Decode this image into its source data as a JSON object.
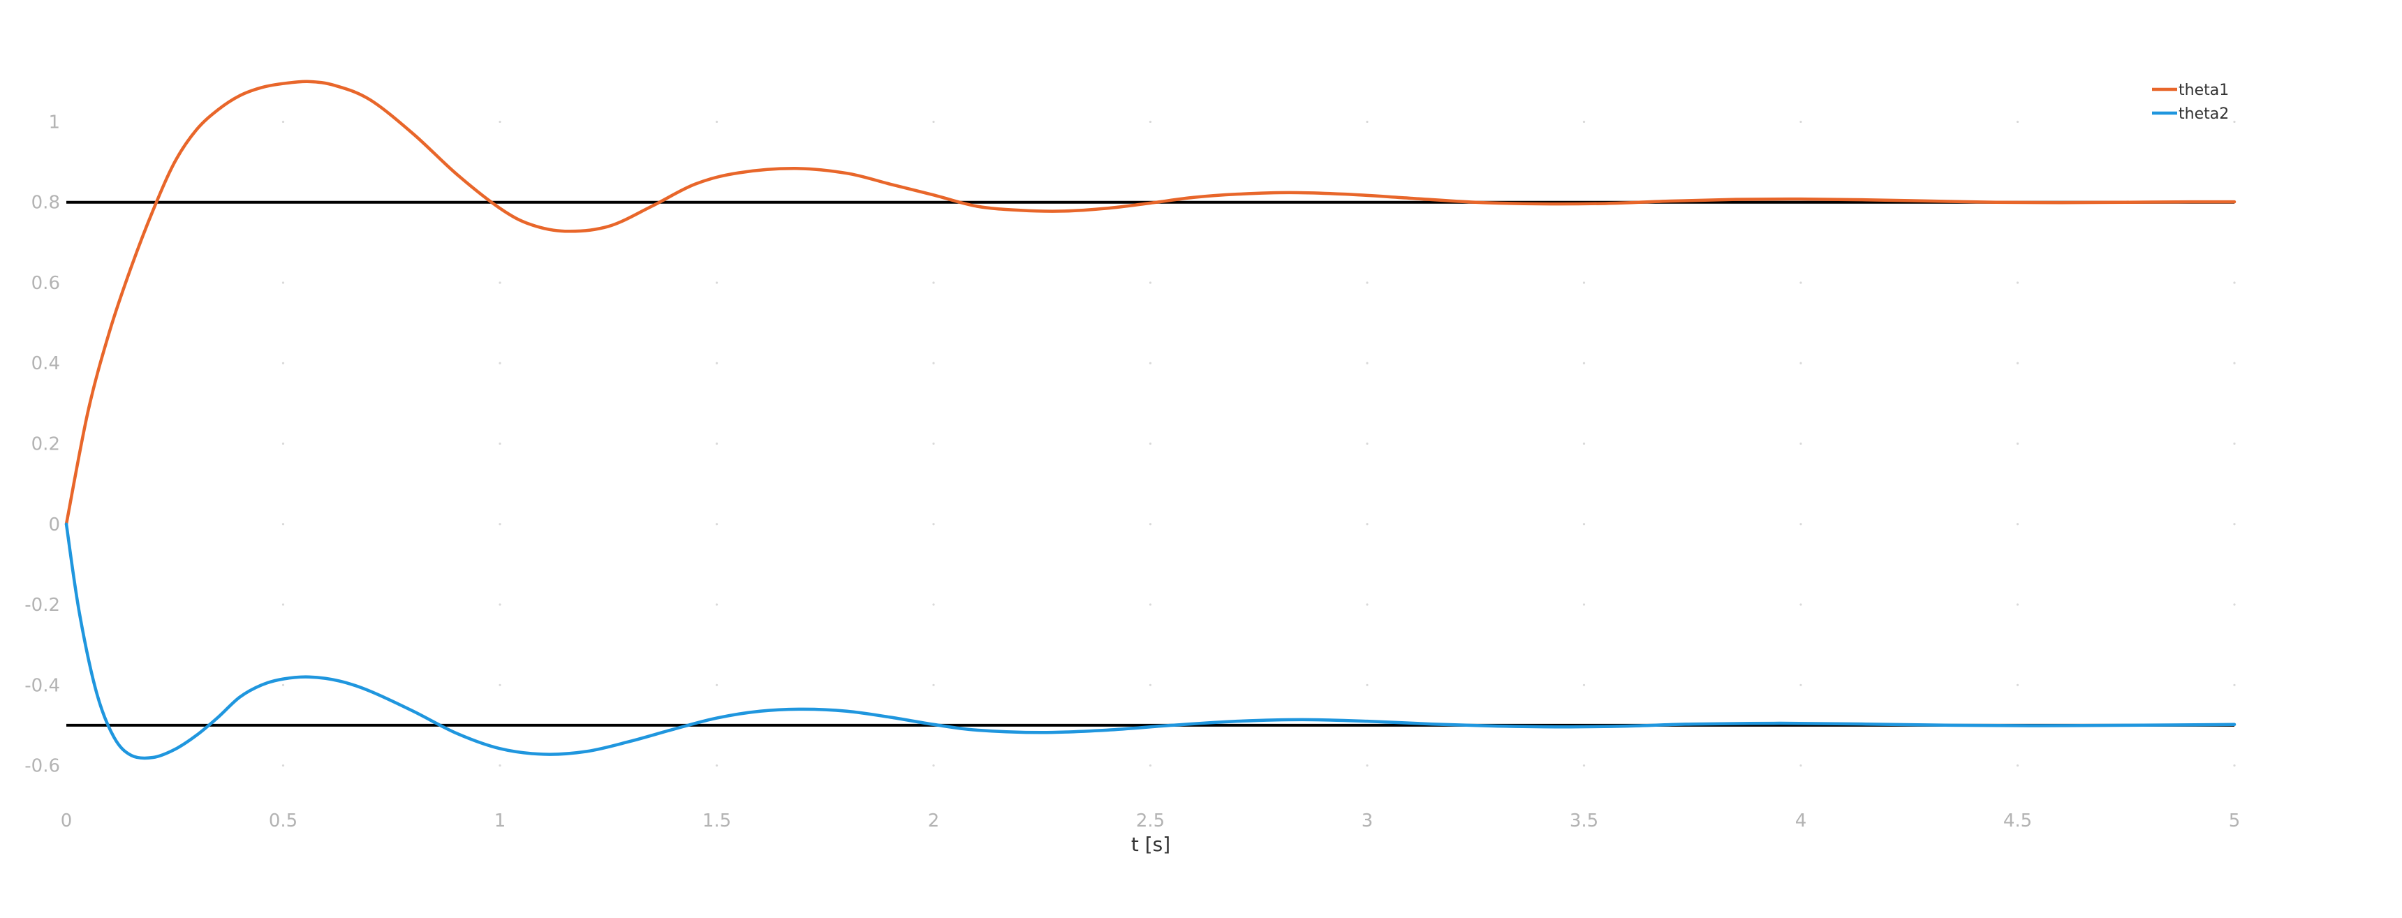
{
  "chart_data": {
    "type": "line",
    "xlabel": "t [s]",
    "ylabel": "",
    "xlim": [
      0,
      5
    ],
    "ylim": [
      -0.75,
      1.15
    ],
    "x_ticks": [
      0,
      0.5,
      1,
      1.5,
      2,
      2.5,
      3,
      3.5,
      4,
      4.5,
      5
    ],
    "x_tick_labels": [
      "0",
      "0.5",
      "1",
      "1.5",
      "2",
      "2.5",
      "3",
      "3.5",
      "4",
      "4.5",
      "5"
    ],
    "y_ticks": [
      1,
      0.8,
      0.6,
      0.4,
      0.2,
      0,
      -0.2,
      -0.4,
      -0.6
    ],
    "y_tick_labels": [
      "1",
      "0.8",
      "0.6",
      "0.4",
      "0.2",
      "0",
      "-0.2",
      "-0.4",
      "-0.6"
    ],
    "grid": "dotted",
    "legend_position": "top-right",
    "reference_lines": [
      {
        "y": 0.8,
        "color": "#000000"
      },
      {
        "y": -0.5,
        "color": "#000000"
      }
    ],
    "series": [
      {
        "name": "theta1",
        "color": "#e8662a",
        "points": [
          [
            0,
            0
          ],
          [
            0.05,
            0.28
          ],
          [
            0.1,
            0.48
          ],
          [
            0.15,
            0.64
          ],
          [
            0.2,
            0.78
          ],
          [
            0.25,
            0.9
          ],
          [
            0.3,
            0.98
          ],
          [
            0.35,
            1.03
          ],
          [
            0.4,
            1.065
          ],
          [
            0.45,
            1.085
          ],
          [
            0.5,
            1.095
          ],
          [
            0.56,
            1.1
          ],
          [
            0.62,
            1.09
          ],
          [
            0.7,
            1.055
          ],
          [
            0.8,
            0.97
          ],
          [
            0.9,
            0.87
          ],
          [
            1.0,
            0.785
          ],
          [
            1.07,
            0.745
          ],
          [
            1.15,
            0.728
          ],
          [
            1.25,
            0.74
          ],
          [
            1.35,
            0.79
          ],
          [
            1.45,
            0.845
          ],
          [
            1.55,
            0.873
          ],
          [
            1.68,
            0.884
          ],
          [
            1.8,
            0.872
          ],
          [
            1.9,
            0.845
          ],
          [
            2.0,
            0.818
          ],
          [
            2.1,
            0.79
          ],
          [
            2.2,
            0.78
          ],
          [
            2.3,
            0.778
          ],
          [
            2.4,
            0.785
          ],
          [
            2.5,
            0.798
          ],
          [
            2.6,
            0.812
          ],
          [
            2.7,
            0.82
          ],
          [
            2.82,
            0.824
          ],
          [
            2.95,
            0.82
          ],
          [
            3.1,
            0.81
          ],
          [
            3.25,
            0.8
          ],
          [
            3.4,
            0.796
          ],
          [
            3.55,
            0.797
          ],
          [
            3.7,
            0.803
          ],
          [
            3.85,
            0.807
          ],
          [
            4.0,
            0.808
          ],
          [
            4.15,
            0.806
          ],
          [
            4.3,
            0.803
          ],
          [
            4.45,
            0.8
          ],
          [
            4.6,
            0.799
          ],
          [
            4.75,
            0.8
          ],
          [
            4.9,
            0.801
          ],
          [
            5.0,
            0.801
          ]
        ]
      },
      {
        "name": "theta2",
        "color": "#1f96de",
        "points": [
          [
            0,
            0
          ],
          [
            0.03,
            -0.22
          ],
          [
            0.07,
            -0.42
          ],
          [
            0.11,
            -0.53
          ],
          [
            0.15,
            -0.575
          ],
          [
            0.2,
            -0.58
          ],
          [
            0.25,
            -0.56
          ],
          [
            0.3,
            -0.525
          ],
          [
            0.35,
            -0.48
          ],
          [
            0.4,
            -0.43
          ],
          [
            0.45,
            -0.4
          ],
          [
            0.5,
            -0.385
          ],
          [
            0.56,
            -0.38
          ],
          [
            0.63,
            -0.39
          ],
          [
            0.7,
            -0.415
          ],
          [
            0.8,
            -0.465
          ],
          [
            0.9,
            -0.52
          ],
          [
            1.0,
            -0.558
          ],
          [
            1.1,
            -0.572
          ],
          [
            1.2,
            -0.565
          ],
          [
            1.3,
            -0.54
          ],
          [
            1.4,
            -0.51
          ],
          [
            1.5,
            -0.482
          ],
          [
            1.6,
            -0.465
          ],
          [
            1.7,
            -0.46
          ],
          [
            1.8,
            -0.465
          ],
          [
            1.9,
            -0.48
          ],
          [
            2.0,
            -0.498
          ],
          [
            2.1,
            -0.512
          ],
          [
            2.25,
            -0.518
          ],
          [
            2.4,
            -0.512
          ],
          [
            2.55,
            -0.5
          ],
          [
            2.7,
            -0.49
          ],
          [
            2.85,
            -0.486
          ],
          [
            3.0,
            -0.49
          ],
          [
            3.15,
            -0.497
          ],
          [
            3.3,
            -0.502
          ],
          [
            3.45,
            -0.504
          ],
          [
            3.6,
            -0.502
          ],
          [
            3.75,
            -0.497
          ],
          [
            3.95,
            -0.495
          ],
          [
            4.15,
            -0.497
          ],
          [
            4.35,
            -0.5
          ],
          [
            4.55,
            -0.501
          ],
          [
            4.75,
            -0.5
          ],
          [
            5.0,
            -0.498
          ]
        ]
      }
    ]
  }
}
